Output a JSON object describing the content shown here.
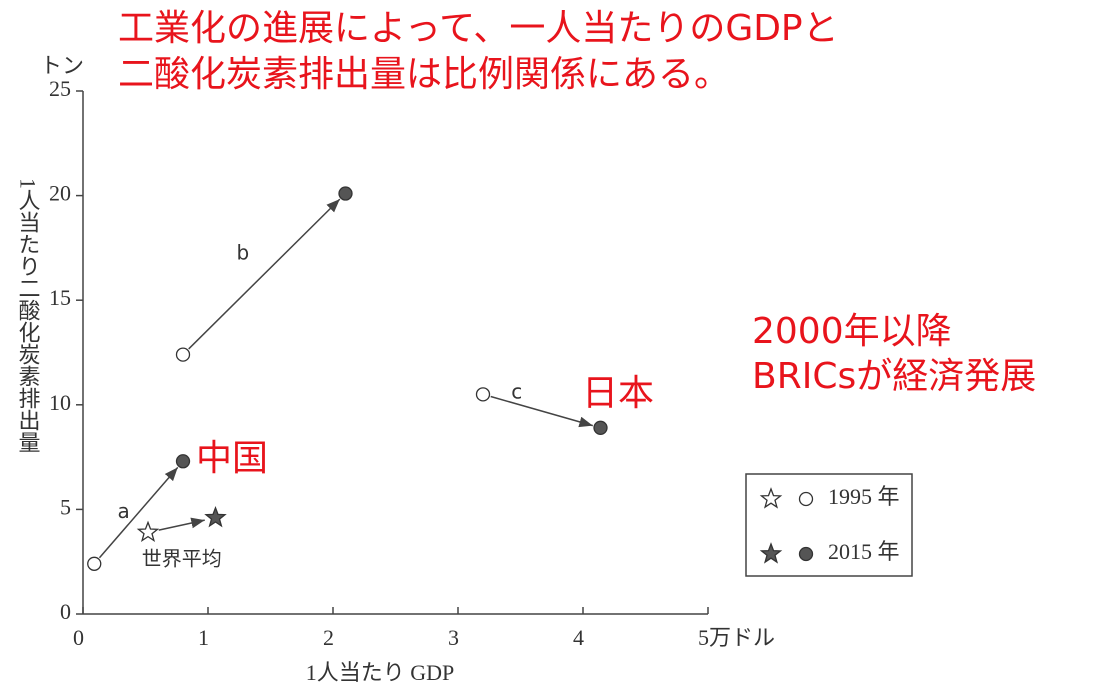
{
  "chart_data": {
    "type": "scatter",
    "title": [
      "工業化の進展によって、一人当たりのGDPと",
      "二酸化炭素排出量は比例関係にある。"
    ],
    "annotations": [
      "2000年以降",
      "BRICsが経済発展",
      "日本",
      "中国"
    ],
    "xlabel": "1人当たり GDP",
    "ylabel": "1人当たり二酸化炭素排出量",
    "yunit": "トン",
    "xlim": [
      0,
      5
    ],
    "xticks": [
      0,
      1,
      2,
      3,
      4,
      {
        "value": 5,
        "label": "5万ドル"
      }
    ],
    "ylim": [
      0,
      25
    ],
    "yticks": [
      0,
      5,
      10,
      15,
      20,
      25
    ],
    "point_labels": [
      "a",
      "b",
      "c",
      "世界平均"
    ],
    "markers": [
      "circle",
      "circle",
      "circle",
      "star"
    ],
    "series": [
      {
        "name": "1995 年",
        "color": "#ffffff",
        "x": [
          0.09,
          0.8,
          3.2,
          0.52
        ],
        "values": [
          2.4,
          12.4,
          10.5,
          3.9
        ]
      },
      {
        "name": "2015 年",
        "color": "#555555",
        "x": [
          0.8,
          2.1,
          4.14,
          1.06
        ],
        "values": [
          7.3,
          20.1,
          8.9,
          4.6
        ]
      }
    ]
  }
}
